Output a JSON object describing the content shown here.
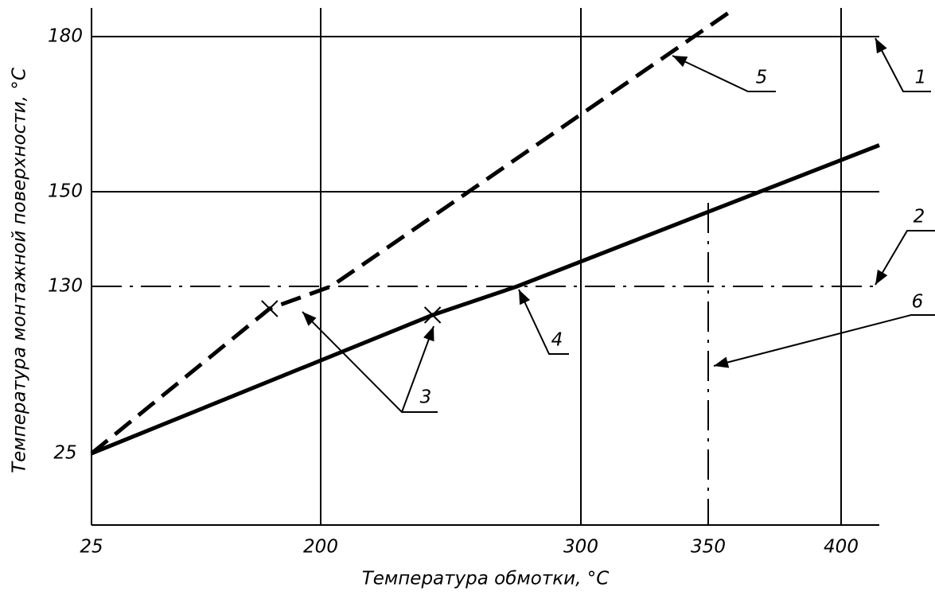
{
  "chart_data": {
    "type": "line",
    "xlabel": "Температура обмотки, °C",
    "ylabel": "Температура монтажной поверхности, °C",
    "xlim": [
      25,
      414
    ],
    "xticks": [
      25,
      200,
      300,
      350,
      400
    ],
    "xtick_styles": [
      "none",
      "solid",
      "solid",
      "dashdot",
      "solid"
    ],
    "ylim": [
      -20,
      185
    ],
    "yticks": [
      25,
      130,
      150,
      180
    ],
    "ytick_styles": [
      "none",
      "dashdot",
      "solid",
      "solid"
    ],
    "series": [
      {
        "color": "#000000",
        "style": "solid",
        "x": [
          25,
          243,
          275.5,
          414
        ],
        "values": [
          25,
          112,
          130,
          159
        ],
        "marked": [
          false,
          true,
          false,
          false
        ]
      },
      {
        "color": "#000000",
        "style": "dashed",
        "x": [
          25,
          161,
          204,
          358.4
        ],
        "values": [
          25,
          116,
          130,
          184.8
        ],
        "marked": [
          false,
          true,
          false,
          false
        ]
      }
    ],
    "annotations": [
      "1",
      "2",
      "3",
      "4",
      "5",
      "6"
    ]
  }
}
